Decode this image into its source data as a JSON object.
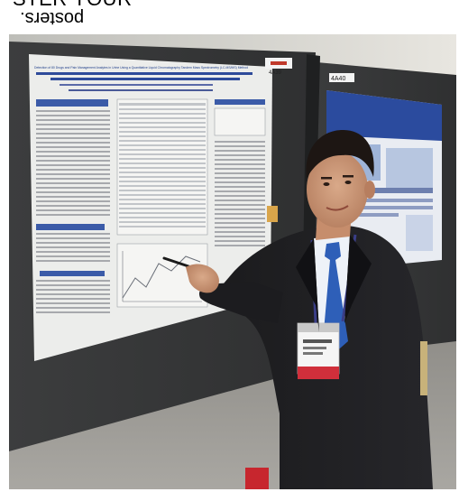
{
  "caption": {
    "top_partial": "STER  YOUR",
    "flipped": "posters."
  },
  "photo": {
    "poster_left": {
      "title": "Detection of 80 Drugs and Pain Management Analytes in Urine Using a Quantitative Liquid Chromatography Tandem Mass Spectrometry (LC-MS/MS) Method"
    },
    "booth_sign_left": "4A39",
    "booth_sign_right": "4A40"
  }
}
